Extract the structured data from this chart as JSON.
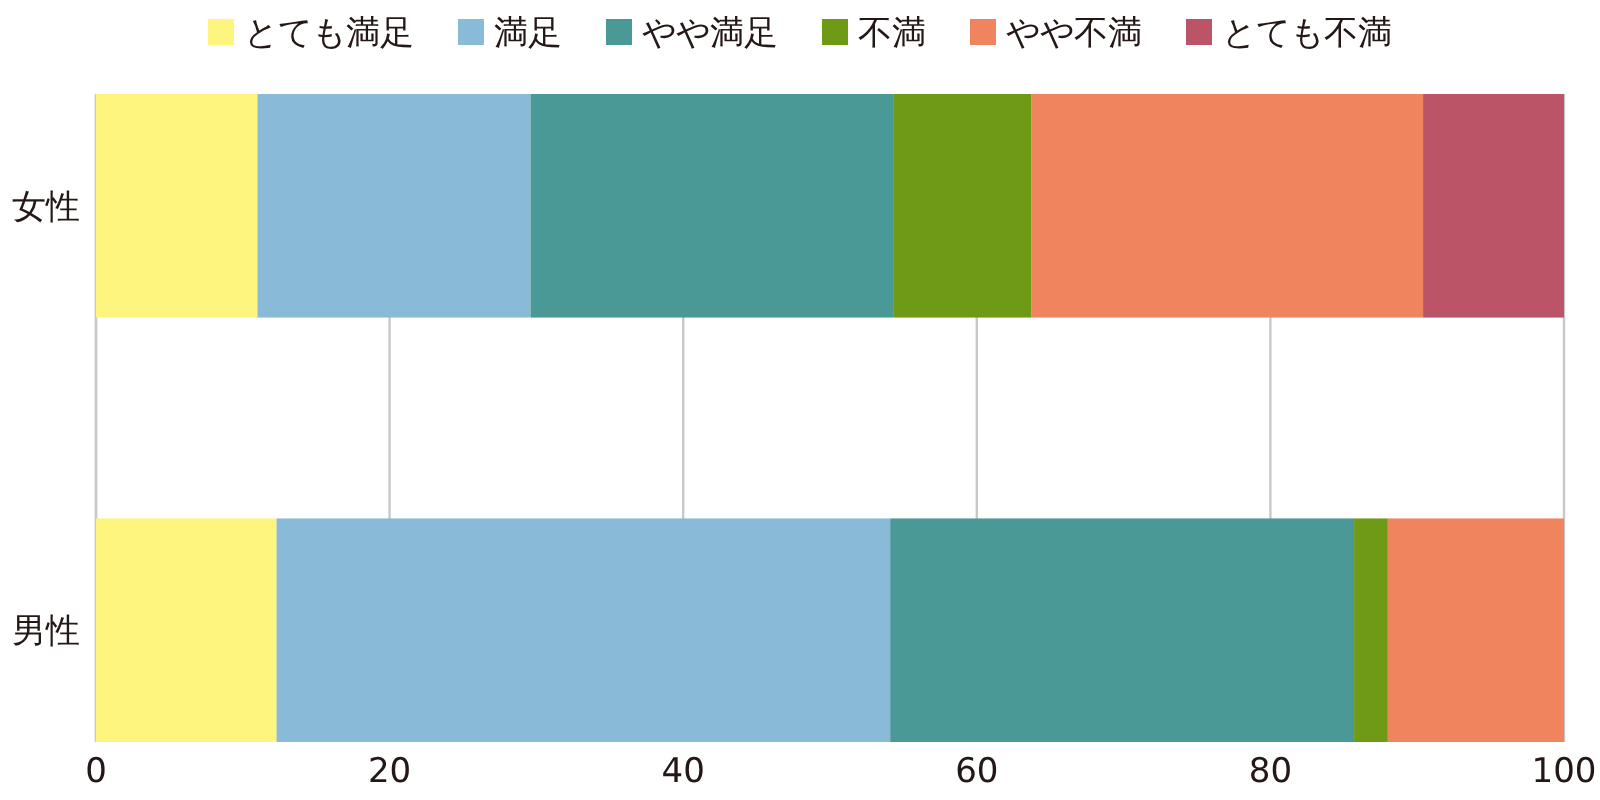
{
  "chart_data": {
    "type": "bar",
    "orientation": "horizontal",
    "stacked": true,
    "categories": [
      "女性",
      "男性"
    ],
    "series": [
      {
        "name": "とても満足",
        "color": "#fef57e",
        "values": [
          11.0,
          12.3
        ]
      },
      {
        "name": "満足",
        "color": "#89bbd8",
        "values": [
          18.6,
          41.8
        ]
      },
      {
        "name": "やや満足",
        "color": "#4a9996",
        "values": [
          24.7,
          31.6
        ]
      },
      {
        "name": "不満",
        "color": "#6e9a16",
        "values": [
          9.4,
          2.3
        ]
      },
      {
        "name": "やや不満",
        "color": "#ef845f",
        "values": [
          26.7,
          12.0
        ]
      },
      {
        "name": "とても不満",
        "color": "#bb5467",
        "values": [
          9.6,
          0.0
        ]
      }
    ],
    "xlim": [
      0,
      100
    ],
    "xticks": [
      0,
      20,
      40,
      60,
      80,
      100
    ],
    "grid": "x",
    "legend": "top"
  }
}
